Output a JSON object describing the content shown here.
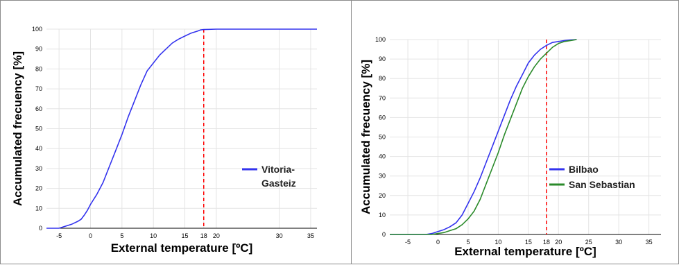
{
  "chart_data": [
    {
      "type": "line",
      "title": "",
      "xlabel": "External temperature [ºC]",
      "ylabel": "Accumulated frecuency [%]",
      "xlim": [
        -7,
        36
      ],
      "ylim": [
        0,
        100
      ],
      "xticks": [
        "-5",
        "0",
        "5",
        "10",
        "15",
        "18",
        "20",
        "30",
        "35"
      ],
      "yticks": [
        "0",
        "10",
        "20",
        "30",
        "40",
        "50",
        "60",
        "70",
        "80",
        "90",
        "100"
      ],
      "grid": true,
      "legend_position": "right",
      "reference_line": {
        "x": 18,
        "style": "dashed",
        "color": "#ff0000"
      },
      "series": [
        {
          "name": "Vitoria-Gasteiz",
          "color": "#3333ee",
          "x": [
            -7,
            -5,
            -4,
            -3,
            -2,
            -1.5,
            -1,
            -0.5,
            0,
            1,
            2,
            3,
            4,
            5,
            6,
            7,
            8,
            9,
            10,
            11,
            12,
            13,
            14,
            15,
            16,
            17,
            17.5,
            18,
            20,
            21,
            36
          ],
          "y": [
            0,
            0,
            1,
            2,
            3.5,
            4.5,
            6.5,
            9,
            12,
            17,
            23,
            31,
            39,
            47,
            56,
            64,
            72,
            79,
            83,
            87,
            90,
            93,
            95,
            96.5,
            98,
            99,
            99.6,
            99.8,
            100,
            100,
            100
          ]
        }
      ]
    },
    {
      "type": "line",
      "title": "",
      "xlabel": "External temperature [ºC]",
      "ylabel": "Accumulated frecuency [%]",
      "xlim": [
        -8,
        37
      ],
      "ylim": [
        0,
        100
      ],
      "xticks": [
        "-5",
        "0",
        "5",
        "10",
        "15",
        "18",
        "20",
        "25",
        "30",
        "35"
      ],
      "yticks": [
        "0",
        "10",
        "20",
        "30",
        "40",
        "50",
        "60",
        "70",
        "80",
        "90",
        "100"
      ],
      "grid": true,
      "legend_position": "right",
      "reference_line": {
        "x": 18,
        "style": "dashed",
        "color": "#ff0000"
      },
      "series": [
        {
          "name": "Bilbao",
          "color": "#3333ee",
          "x": [
            -8,
            -4,
            -2,
            -1,
            0,
            1,
            2,
            3,
            4,
            5,
            6,
            7,
            8,
            9,
            10,
            11,
            12,
            13,
            14,
            15,
            16,
            17,
            18,
            19,
            20,
            21,
            22,
            23
          ],
          "y": [
            0,
            0,
            0,
            0.5,
            1.5,
            2.5,
            4,
            6,
            10,
            16,
            22,
            29,
            37,
            45,
            53,
            61,
            69,
            76,
            82,
            88,
            92,
            95,
            97,
            98.5,
            99,
            99.5,
            99.8,
            100
          ]
        },
        {
          "name": "San Sebastian",
          "color": "#2a8a2a",
          "x": [
            -8,
            -3,
            -1,
            0,
            1,
            2,
            3,
            4,
            5,
            6,
            7,
            8,
            9,
            10,
            11,
            12,
            13,
            14,
            15,
            16,
            17,
            18,
            19,
            20,
            21,
            22,
            23
          ],
          "y": [
            0,
            0,
            0,
            0.5,
            1,
            2,
            3,
            5,
            8,
            12,
            18,
            26,
            34,
            42,
            51,
            59,
            67,
            75,
            81,
            86,
            90,
            93,
            96,
            98,
            99,
            99.5,
            100
          ]
        }
      ]
    }
  ]
}
